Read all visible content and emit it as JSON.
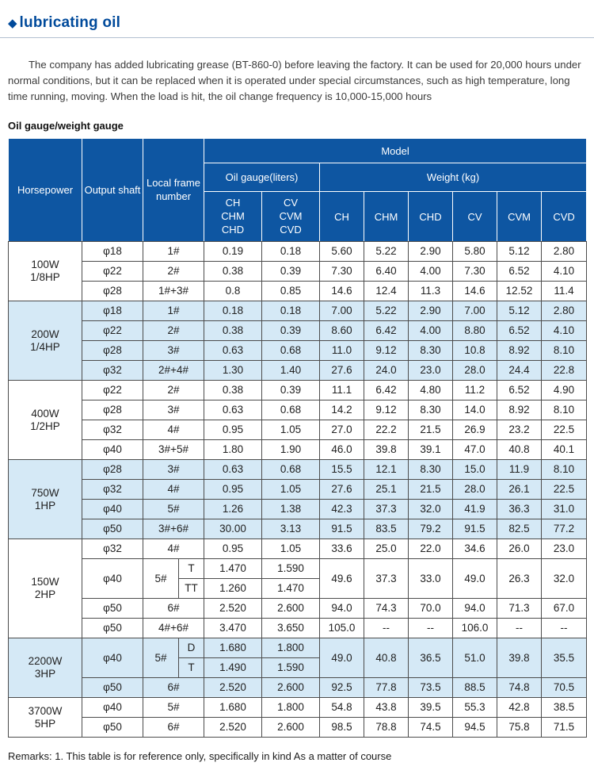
{
  "page": {
    "title_bullet": "◆",
    "title": "lubricating oil",
    "intro": "The company has added lubricating grease (BT-860-0) before leaving the factory. It can be used for 20,000 hours under normal conditions, but it can be replaced when it is operated under special circumstances, such as high temperature, long time running, moving.  When the load is hit, the oil change frequency is 10,000-15,000 hours",
    "table_caption": "Oil gauge/weight gauge",
    "remarks": "Remarks: 1. This table is for reference only, specifically in kind  As a matter of course"
  },
  "colors": {
    "header_bg": "#0e56a2",
    "band_bg": "#d5e9f6",
    "title_blue": "#004a9b",
    "border_dark": "#4c4c4c"
  },
  "table": {
    "header": {
      "horsepower": "Horsepower",
      "output_shaft": "Output shaft",
      "local_frame": "Local frame\nnumber",
      "model": "Model",
      "oil_gauge": "Oil gauge(liters)",
      "weight": "Weight (kg)",
      "oil_cols": [
        "CH\nCHM\nCHD",
        "CV\nCVM\nCVD"
      ],
      "weight_cols": [
        "CH",
        "CHM",
        "CHD",
        "CV",
        "CVM",
        "CVD"
      ]
    },
    "sections": [
      {
        "label": "100W\n1/8HP",
        "shade": false,
        "rows": [
          {
            "shaft": "φ18",
            "frame": "1#",
            "oil": [
              "0.19",
              "0.18"
            ],
            "weight": [
              "5.60",
              "5.22",
              "2.90",
              "5.80",
              "5.12",
              "2.80"
            ]
          },
          {
            "shaft": "φ22",
            "frame": "2#",
            "oil": [
              "0.38",
              "0.39"
            ],
            "weight": [
              "7.30",
              "6.40",
              "4.00",
              "7.30",
              "6.52",
              "4.10"
            ]
          },
          {
            "shaft": "φ28",
            "frame": "1#+3#",
            "oil": [
              "0.8",
              "0.85"
            ],
            "weight": [
              "14.6",
              "12.4",
              "11.3",
              "14.6",
              "12.52",
              "11.4"
            ]
          }
        ]
      },
      {
        "label": "200W\n1/4HP",
        "shade": true,
        "rows": [
          {
            "shaft": "φ18",
            "frame": "1#",
            "oil": [
              "0.18",
              "0.18"
            ],
            "weight": [
              "7.00",
              "5.22",
              "2.90",
              "7.00",
              "5.12",
              "2.80"
            ]
          },
          {
            "shaft": "φ22",
            "frame": "2#",
            "oil": [
              "0.38",
              "0.39"
            ],
            "weight": [
              "8.60",
              "6.42",
              "4.00",
              "8.80",
              "6.52",
              "4.10"
            ]
          },
          {
            "shaft": "φ28",
            "frame": "3#",
            "oil": [
              "0.63",
              "0.68"
            ],
            "weight": [
              "11.0",
              "9.12",
              "8.30",
              "10.8",
              "8.92",
              "8.10"
            ]
          },
          {
            "shaft": "φ32",
            "frame": "2#+4#",
            "oil": [
              "1.30",
              "1.40"
            ],
            "weight": [
              "27.6",
              "24.0",
              "23.0",
              "28.0",
              "24.4",
              "22.8"
            ]
          }
        ]
      },
      {
        "label": "400W\n1/2HP",
        "shade": false,
        "rows": [
          {
            "shaft": "φ22",
            "frame": "2#",
            "oil": [
              "0.38",
              "0.39"
            ],
            "weight": [
              "11.1",
              "6.42",
              "4.80",
              "11.2",
              "6.52",
              "4.90"
            ]
          },
          {
            "shaft": "φ28",
            "frame": "3#",
            "oil": [
              "0.63",
              "0.68"
            ],
            "weight": [
              "14.2",
              "9.12",
              "8.30",
              "14.0",
              "8.92",
              "8.10"
            ]
          },
          {
            "shaft": "φ32",
            "frame": "4#",
            "oil": [
              "0.95",
              "1.05"
            ],
            "weight": [
              "27.0",
              "22.2",
              "21.5",
              "26.9",
              "23.2",
              "22.5"
            ]
          },
          {
            "shaft": "φ40",
            "frame": "3#+5#",
            "oil": [
              "1.80",
              "1.90"
            ],
            "weight": [
              "46.0",
              "39.8",
              "39.1",
              "47.0",
              "40.8",
              "40.1"
            ]
          }
        ]
      },
      {
        "label": "750W\n1HP",
        "shade": true,
        "rows": [
          {
            "shaft": "φ28",
            "frame": "3#",
            "oil": [
              "0.63",
              "0.68"
            ],
            "weight": [
              "15.5",
              "12.1",
              "8.30",
              "15.0",
              "11.9",
              "8.10"
            ]
          },
          {
            "shaft": "φ32",
            "frame": "4#",
            "oil": [
              "0.95",
              "1.05"
            ],
            "weight": [
              "27.6",
              "25.1",
              "21.5",
              "28.0",
              "26.1",
              "22.5"
            ]
          },
          {
            "shaft": "φ40",
            "frame": "5#",
            "oil": [
              "1.26",
              "1.38"
            ],
            "weight": [
              "42.3",
              "37.3",
              "32.0",
              "41.9",
              "36.3",
              "31.0"
            ]
          },
          {
            "shaft": "φ50",
            "frame": "3#+6#",
            "oil": [
              "30.00",
              "3.13"
            ],
            "weight": [
              "91.5",
              "83.5",
              "79.2",
              "91.5",
              "82.5",
              "77.2"
            ]
          }
        ]
      },
      {
        "label": "150W\n2HP",
        "shade": false,
        "rows": [
          {
            "shaft": "φ32",
            "frame": "4#",
            "oil": [
              "0.95",
              "1.05"
            ],
            "weight": [
              "33.6",
              "25.0",
              "22.0",
              "34.6",
              "26.0",
              "23.0"
            ]
          },
          {
            "shaft": "φ40",
            "shaft_rs": 2,
            "frame": "5#",
            "frame_rs": 2,
            "sub": "T",
            "oil": [
              "1.470",
              "1.590"
            ],
            "weight": [
              "49.6",
              "37.3",
              "33.0",
              "49.0",
              "26.3",
              "32.0"
            ],
            "weight_rs": 2
          },
          {
            "sub": "TT",
            "oil": [
              "1.260",
              "1.470"
            ]
          },
          {
            "shaft": "φ50",
            "frame": "6#",
            "oil": [
              "2.520",
              "2.600"
            ],
            "weight": [
              "94.0",
              "74.3",
              "70.0",
              "94.0",
              "71.3",
              "67.0"
            ]
          },
          {
            "shaft": "φ50",
            "frame": "4#+6#",
            "oil": [
              "3.470",
              "3.650"
            ],
            "weight": [
              "105.0",
              "--",
              "--",
              "106.0",
              "--",
              "--"
            ]
          }
        ]
      },
      {
        "label": "2200W\n3HP",
        "shade": true,
        "rows": [
          {
            "shaft": "φ40",
            "shaft_rs": 2,
            "frame": "5#",
            "frame_rs": 2,
            "sub": "D",
            "oil": [
              "1.680",
              "1.800"
            ],
            "weight": [
              "49.0",
              "40.8",
              "36.5",
              "51.0",
              "39.8",
              "35.5"
            ],
            "weight_rs": 2
          },
          {
            "sub": "T",
            "oil": [
              "1.490",
              "1.590"
            ]
          },
          {
            "shaft": "φ50",
            "frame": "6#",
            "oil": [
              "2.520",
              "2.600"
            ],
            "weight": [
              "92.5",
              "77.8",
              "73.5",
              "88.5",
              "74.8",
              "70.5"
            ]
          }
        ]
      },
      {
        "label": "3700W\n5HP",
        "shade": false,
        "rows": [
          {
            "shaft": "φ40",
            "frame": "5#",
            "oil": [
              "1.680",
              "1.800"
            ],
            "weight": [
              "54.8",
              "43.8",
              "39.5",
              "55.3",
              "42.8",
              "38.5"
            ]
          },
          {
            "shaft": "φ50",
            "frame": "6#",
            "oil": [
              "2.520",
              "2.600"
            ],
            "weight": [
              "98.5",
              "78.8",
              "74.5",
              "94.5",
              "75.8",
              "71.5"
            ]
          }
        ]
      }
    ]
  }
}
